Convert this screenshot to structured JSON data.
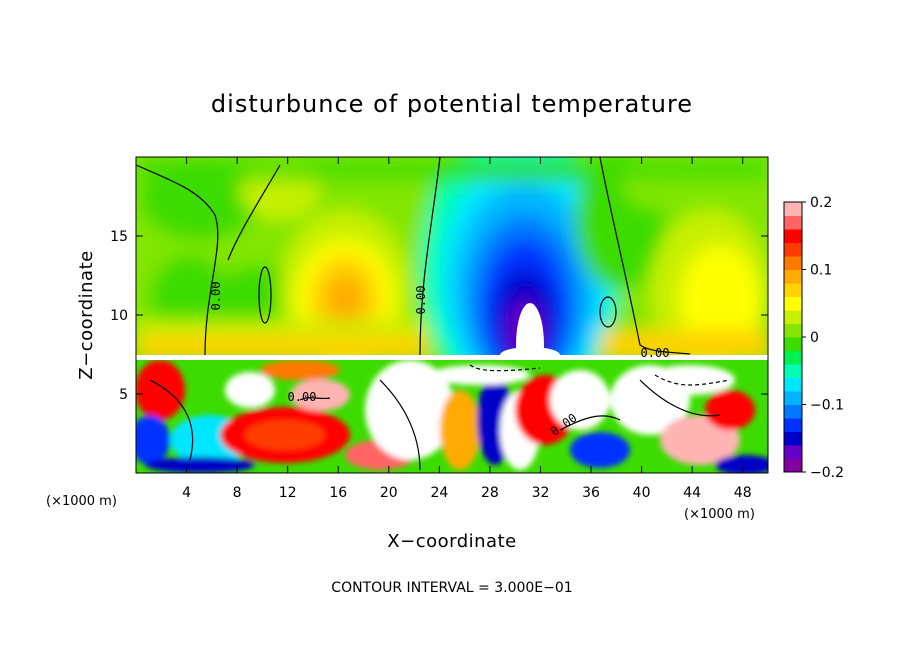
{
  "chart_data": {
    "type": "heatmap",
    "title": "disturbunce of potential temperature",
    "xlabel": "X−coordinate",
    "ylabel": "Z−coordinate",
    "x_unit": "(×1000 m)",
    "z_unit": "(×1000 m)",
    "xlim": [
      0,
      50
    ],
    "ylim": [
      0,
      20
    ],
    "x_ticks": [
      4,
      8,
      12,
      16,
      20,
      24,
      28,
      32,
      36,
      40,
      44,
      48
    ],
    "y_ticks": [
      5,
      10,
      15
    ],
    "colorbar": {
      "range": [
        -0.2,
        0.2
      ],
      "tick_values": [
        0.2,
        0.1,
        0,
        -0.1,
        -0.2
      ],
      "tick_labels": [
        "0.2",
        "0.1",
        "0",
        "−0.1",
        "−0.2"
      ],
      "colors": [
        "#8200a0",
        "#6400c8",
        "#0000c8",
        "#0032ff",
        "#0078ff",
        "#00b4ff",
        "#00e6ff",
        "#00ffb4",
        "#00f050",
        "#3cdc00",
        "#82e600",
        "#c8f000",
        "#ffff00",
        "#ffd200",
        "#ffaa00",
        "#ff7800",
        "#ff3c00",
        "#ff0000",
        "#ff6464",
        "#ffb4b4"
      ]
    },
    "contour_labels": [
      "0.00",
      "0.00",
      "0.00",
      "0.00",
      "0.00"
    ],
    "contour_interval_text": "CONTOUR INTERVAL = 3.000E−01"
  }
}
